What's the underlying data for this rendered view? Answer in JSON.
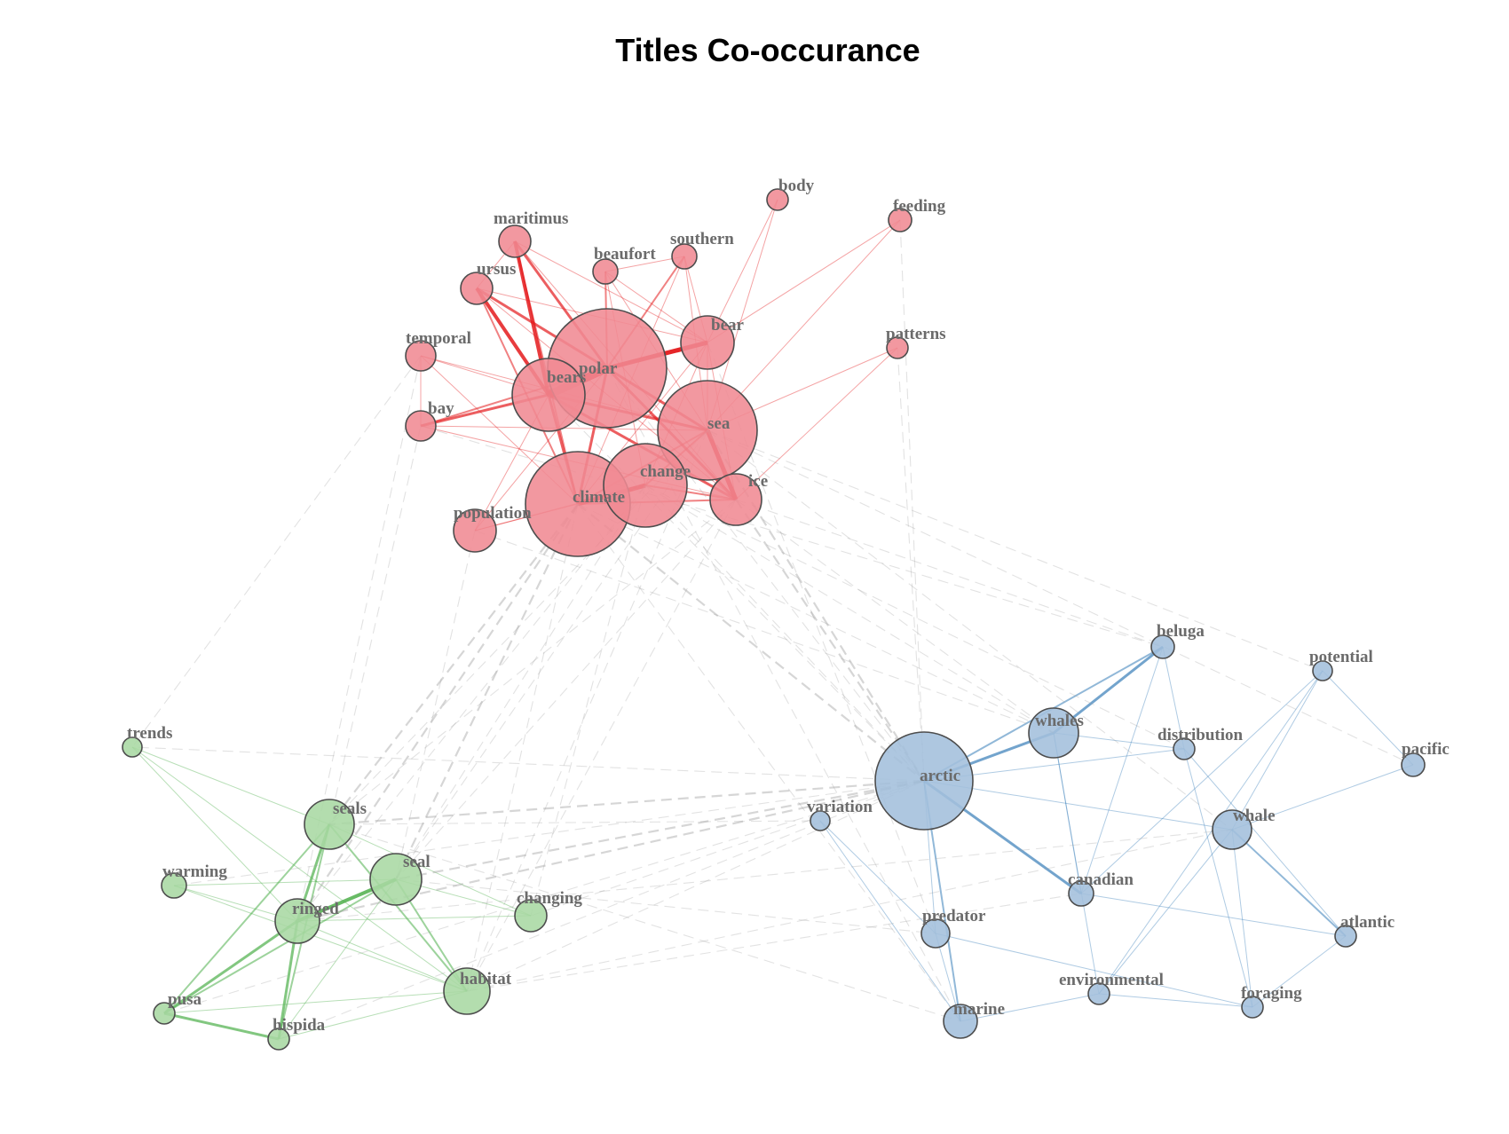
{
  "title": "Titles Co-occurance",
  "colors": {
    "cluster_1": "#e41a1c",
    "cluster_2": "#377eb8",
    "cluster_3": "#4daf4a",
    "between_clusters": "#9e9e9e"
  },
  "clusters": [
    {
      "id": 1,
      "color": "#e41a1c",
      "fill": "#f08a93"
    },
    {
      "id": 2,
      "color": "#377eb8",
      "fill": "#a3bfdc"
    },
    {
      "id": 3,
      "color": "#4daf4a",
      "fill": "#a8d8a3"
    }
  ],
  "nodes": [
    {
      "id": "polar",
      "label": "polar",
      "cluster": 1
    },
    {
      "id": "bears",
      "label": "bears",
      "cluster": 1
    },
    {
      "id": "climate",
      "label": "climate",
      "cluster": 1
    },
    {
      "id": "sea",
      "label": "sea",
      "cluster": 1
    },
    {
      "id": "change",
      "label": "change",
      "cluster": 1
    },
    {
      "id": "bear",
      "label": "bear",
      "cluster": 1
    },
    {
      "id": "ice",
      "label": "ice",
      "cluster": 1
    },
    {
      "id": "population",
      "label": "population",
      "cluster": 1
    },
    {
      "id": "maritimus",
      "label": "maritimus",
      "cluster": 1
    },
    {
      "id": "ursus",
      "label": "ursus",
      "cluster": 1
    },
    {
      "id": "southern",
      "label": "southern",
      "cluster": 1
    },
    {
      "id": "beaufort",
      "label": "beaufort",
      "cluster": 1
    },
    {
      "id": "temporal",
      "label": "temporal",
      "cluster": 1
    },
    {
      "id": "bay",
      "label": "bay",
      "cluster": 1
    },
    {
      "id": "body",
      "label": "body",
      "cluster": 1
    },
    {
      "id": "feeding",
      "label": "feeding",
      "cluster": 1
    },
    {
      "id": "patterns",
      "label": "patterns",
      "cluster": 1
    },
    {
      "id": "arctic",
      "label": "arctic",
      "cluster": 2
    },
    {
      "id": "whales",
      "label": "whales",
      "cluster": 2
    },
    {
      "id": "whale",
      "label": "whale",
      "cluster": 2
    },
    {
      "id": "marine",
      "label": "marine",
      "cluster": 2
    },
    {
      "id": "predator",
      "label": "predator",
      "cluster": 2
    },
    {
      "id": "canadian",
      "label": "canadian",
      "cluster": 2
    },
    {
      "id": "beluga",
      "label": "beluga",
      "cluster": 2
    },
    {
      "id": "distribution",
      "label": "distribution",
      "cluster": 2
    },
    {
      "id": "potential",
      "label": "potential",
      "cluster": 2
    },
    {
      "id": "pacific",
      "label": "pacific",
      "cluster": 2
    },
    {
      "id": "atlantic",
      "label": "atlantic",
      "cluster": 2
    },
    {
      "id": "environmental",
      "label": "environmental",
      "cluster": 2
    },
    {
      "id": "foraging",
      "label": "foraging",
      "cluster": 2
    },
    {
      "id": "variation",
      "label": "variation",
      "cluster": 2
    },
    {
      "id": "seals",
      "label": "seals",
      "cluster": 3
    },
    {
      "id": "seal",
      "label": "seal",
      "cluster": 3
    },
    {
      "id": "ringed",
      "label": "ringed",
      "cluster": 3
    },
    {
      "id": "habitat",
      "label": "habitat",
      "cluster": 3
    },
    {
      "id": "changing",
      "label": "changing",
      "cluster": 3
    },
    {
      "id": "warming",
      "label": "warming",
      "cluster": 3
    },
    {
      "id": "pusa",
      "label": "pusa",
      "cluster": 3
    },
    {
      "id": "hispida",
      "label": "hispida",
      "cluster": 3
    },
    {
      "id": "trends",
      "label": "trends",
      "cluster": 3
    }
  ],
  "edges": [
    {
      "source": "polar",
      "target": "bears",
      "weight": 9
    },
    {
      "source": "bears",
      "target": "maritimus",
      "weight": 4
    },
    {
      "source": "bears",
      "target": "ursus",
      "weight": 4
    },
    {
      "source": "polar",
      "target": "maritimus",
      "weight": 3
    },
    {
      "source": "polar",
      "target": "ursus",
      "weight": 3
    },
    {
      "source": "polar",
      "target": "bear",
      "weight": 5
    },
    {
      "source": "bears",
      "target": "climate",
      "weight": 3
    },
    {
      "source": "polar",
      "target": "climate",
      "weight": 3
    },
    {
      "source": "climate",
      "target": "change",
      "weight": 5
    },
    {
      "source": "sea",
      "target": "ice",
      "weight": 5
    },
    {
      "source": "polar",
      "target": "sea",
      "weight": 3
    },
    {
      "source": "polar",
      "target": "ice",
      "weight": 3
    },
    {
      "source": "bears",
      "target": "sea",
      "weight": 3
    },
    {
      "source": "bears",
      "target": "ice",
      "weight": 3
    },
    {
      "source": "bears",
      "target": "bay",
      "weight": 3
    },
    {
      "source": "polar",
      "target": "bay",
      "weight": 2
    },
    {
      "source": "bears",
      "target": "temporal",
      "weight": 1
    },
    {
      "source": "polar",
      "target": "population",
      "weight": 1
    },
    {
      "source": "bears",
      "target": "population",
      "weight": 1
    },
    {
      "source": "bear",
      "target": "maritimus",
      "weight": 1
    },
    {
      "source": "bear",
      "target": "ursus",
      "weight": 1
    },
    {
      "source": "bear",
      "target": "southern",
      "weight": 1
    },
    {
      "source": "bear",
      "target": "beaufort",
      "weight": 1
    },
    {
      "source": "polar",
      "target": "beaufort",
      "weight": 2
    },
    {
      "source": "polar",
      "target": "southern",
      "weight": 2
    },
    {
      "source": "sea",
      "target": "beaufort",
      "weight": 1
    },
    {
      "source": "sea",
      "target": "southern",
      "weight": 1
    },
    {
      "source": "sea",
      "target": "body",
      "weight": 1
    },
    {
      "source": "bear",
      "target": "body",
      "weight": 1
    },
    {
      "source": "sea",
      "target": "feeding",
      "weight": 1
    },
    {
      "source": "bear",
      "target": "feeding",
      "weight": 1
    },
    {
      "source": "ice",
      "target": "patterns",
      "weight": 1
    },
    {
      "source": "sea",
      "target": "patterns",
      "weight": 1
    },
    {
      "source": "temporal",
      "target": "climate",
      "weight": 1
    },
    {
      "source": "temporal",
      "target": "sea",
      "weight": 1
    },
    {
      "source": "bay",
      "target": "sea",
      "weight": 1
    },
    {
      "source": "bay",
      "target": "ice",
      "weight": 1
    },
    {
      "source": "change",
      "target": "ice",
      "weight": 2
    },
    {
      "source": "climate",
      "target": "ice",
      "weight": 2
    },
    {
      "source": "climate",
      "target": "sea",
      "weight": 2
    },
    {
      "source": "change",
      "target": "sea",
      "weight": 2
    },
    {
      "source": "population",
      "target": "climate",
      "weight": 1
    },
    {
      "source": "population",
      "target": "change",
      "weight": 1
    },
    {
      "source": "maritimus",
      "target": "ursus",
      "weight": 1
    },
    {
      "source": "maritimus",
      "target": "climate",
      "weight": 2
    },
    {
      "source": "ursus",
      "target": "climate",
      "weight": 2
    },
    {
      "source": "maritimus",
      "target": "ice",
      "weight": 1
    },
    {
      "source": "ursus",
      "target": "ice",
      "weight": 1
    },
    {
      "source": "bear",
      "target": "climate",
      "weight": 1
    },
    {
      "source": "bear",
      "target": "change",
      "weight": 1
    },
    {
      "source": "bear",
      "target": "ice",
      "weight": 1
    },
    {
      "source": "bear",
      "target": "sea",
      "weight": 1
    },
    {
      "source": "temporal",
      "target": "bay",
      "weight": 1
    },
    {
      "source": "southern",
      "target": "beaufort",
      "weight": 1
    },
    {
      "source": "beaufort",
      "target": "change",
      "weight": 1
    },
    {
      "source": "southern",
      "target": "climate",
      "weight": 1
    },
    {
      "source": "arctic",
      "target": "whales",
      "weight": 3
    },
    {
      "source": "arctic",
      "target": "beluga",
      "weight": 2
    },
    {
      "source": "whales",
      "target": "beluga",
      "weight": 3
    },
    {
      "source": "arctic",
      "target": "canadian",
      "weight": 3
    },
    {
      "source": "arctic",
      "target": "marine",
      "weight": 2
    },
    {
      "source": "arctic",
      "target": "predator",
      "weight": 1
    },
    {
      "source": "arctic",
      "target": "whale",
      "weight": 1
    },
    {
      "source": "arctic",
      "target": "distribution",
      "weight": 1
    },
    {
      "source": "whale",
      "target": "atlantic",
      "weight": 2
    },
    {
      "source": "whale",
      "target": "environmental",
      "weight": 1
    },
    {
      "source": "whale",
      "target": "foraging",
      "weight": 1
    },
    {
      "source": "whale",
      "target": "pacific",
      "weight": 1
    },
    {
      "source": "beluga",
      "target": "canadian",
      "weight": 1
    },
    {
      "source": "beluga",
      "target": "distribution",
      "weight": 1
    },
    {
      "source": "whales",
      "target": "distribution",
      "weight": 1
    },
    {
      "source": "whales",
      "target": "canadian",
      "weight": 1
    },
    {
      "source": "whales",
      "target": "environmental",
      "weight": 1
    },
    {
      "source": "distribution",
      "target": "foraging",
      "weight": 1
    },
    {
      "source": "distribution",
      "target": "atlantic",
      "weight": 1
    },
    {
      "source": "potential",
      "target": "canadian",
      "weight": 1
    },
    {
      "source": "potential",
      "target": "environmental",
      "weight": 1
    },
    {
      "source": "potential",
      "target": "pacific",
      "weight": 1
    },
    {
      "source": "canadian",
      "target": "atlantic",
      "weight": 1
    },
    {
      "source": "predator",
      "target": "marine",
      "weight": 1
    },
    {
      "source": "predator",
      "target": "foraging",
      "weight": 1
    },
    {
      "source": "marine",
      "target": "environmental",
      "weight": 1
    },
    {
      "source": "environmental",
      "target": "foraging",
      "weight": 1
    },
    {
      "source": "foraging",
      "target": "atlantic",
      "weight": 1
    },
    {
      "source": "variation",
      "target": "predator",
      "weight": 1
    },
    {
      "source": "variation",
      "target": "marine",
      "weight": 1
    },
    {
      "source": "whale",
      "target": "potential",
      "weight": 1
    },
    {
      "source": "ringed",
      "target": "seal",
      "weight": 4
    },
    {
      "source": "ringed",
      "target": "seals",
      "weight": 3
    },
    {
      "source": "ringed",
      "target": "pusa",
      "weight": 3
    },
    {
      "source": "ringed",
      "target": "hispida",
      "weight": 3
    },
    {
      "source": "pusa",
      "target": "hispida",
      "weight": 3
    },
    {
      "source": "seals",
      "target": "hispida",
      "weight": 2
    },
    {
      "source": "seals",
      "target": "pusa",
      "weight": 2
    },
    {
      "source": "seal",
      "target": "pusa",
      "weight": 2
    },
    {
      "source": "seal",
      "target": "hispida",
      "weight": 1
    },
    {
      "source": "seal",
      "target": "habitat",
      "weight": 2
    },
    {
      "source": "seals",
      "target": "habitat",
      "weight": 2
    },
    {
      "source": "ringed",
      "target": "habitat",
      "weight": 1
    },
    {
      "source": "seal",
      "target": "changing",
      "weight": 1
    },
    {
      "source": "seals",
      "target": "changing",
      "weight": 1
    },
    {
      "source": "warming",
      "target": "seal",
      "weight": 1
    },
    {
      "source": "warming",
      "target": "ringed",
      "weight": 1
    },
    {
      "source": "warming",
      "target": "habitat",
      "weight": 1
    },
    {
      "source": "trends",
      "target": "seals",
      "weight": 1
    },
    {
      "source": "trends",
      "target": "ringed",
      "weight": 1
    },
    {
      "source": "trends",
      "target": "habitat",
      "weight": 1
    },
    {
      "source": "habitat",
      "target": "pusa",
      "weight": 1
    },
    {
      "source": "habitat",
      "target": "hispida",
      "weight": 1
    },
    {
      "source": "changing",
      "target": "ringed",
      "weight": 1
    },
    {
      "source": "climate",
      "target": "seal",
      "weight": 2
    },
    {
      "source": "climate",
      "target": "seals",
      "weight": 2
    },
    {
      "source": "climate",
      "target": "ringed",
      "weight": 2
    },
    {
      "source": "climate",
      "target": "habitat",
      "weight": 1
    },
    {
      "source": "change",
      "target": "seal",
      "weight": 1
    },
    {
      "source": "change",
      "target": "ringed",
      "weight": 1
    },
    {
      "source": "change",
      "target": "arctic",
      "weight": 1
    },
    {
      "source": "climate",
      "target": "arctic",
      "weight": 2
    },
    {
      "source": "sea",
      "target": "arctic",
      "weight": 2
    },
    {
      "source": "ice",
      "target": "arctic",
      "weight": 2
    },
    {
      "source": "polar",
      "target": "arctic",
      "weight": 1
    },
    {
      "source": "bears",
      "target": "arctic",
      "weight": 1
    },
    {
      "source": "arctic",
      "target": "seals",
      "weight": 2
    },
    {
      "source": "arctic",
      "target": "seal",
      "weight": 2
    },
    {
      "source": "arctic",
      "target": "ringed",
      "weight": 2
    },
    {
      "source": "arctic",
      "target": "habitat",
      "weight": 1
    },
    {
      "source": "arctic",
      "target": "trends",
      "weight": 1
    },
    {
      "source": "temporal",
      "target": "trends",
      "weight": 1
    },
    {
      "source": "sea",
      "target": "seal",
      "weight": 1
    },
    {
      "source": "ice",
      "target": "seal",
      "weight": 1
    },
    {
      "source": "ice",
      "target": "seals",
      "weight": 1
    },
    {
      "source": "sea",
      "target": "seals",
      "weight": 1
    },
    {
      "source": "ice",
      "target": "habitat",
      "weight": 1
    },
    {
      "source": "sea",
      "target": "habitat",
      "weight": 1
    },
    {
      "source": "feeding",
      "target": "arctic",
      "weight": 1
    },
    {
      "source": "patterns",
      "target": "arctic",
      "weight": 1
    },
    {
      "source": "population",
      "target": "seal",
      "weight": 1
    },
    {
      "source": "change",
      "target": "changing",
      "weight": 1
    },
    {
      "source": "sea",
      "target": "whale",
      "weight": 1
    },
    {
      "source": "ice",
      "target": "whales",
      "weight": 1
    },
    {
      "source": "ice",
      "target": "beluga",
      "weight": 1
    },
    {
      "source": "climate",
      "target": "whales",
      "weight": 1
    },
    {
      "source": "change",
      "target": "whales",
      "weight": 1
    },
    {
      "source": "polar",
      "target": "marine",
      "weight": 1
    },
    {
      "source": "bear",
      "target": "predator",
      "weight": 1
    },
    {
      "source": "climate",
      "target": "marine",
      "weight": 1
    },
    {
      "source": "warming",
      "target": "arctic",
      "weight": 1
    },
    {
      "source": "changing",
      "target": "arctic",
      "weight": 1
    },
    {
      "source": "seals",
      "target": "marine",
      "weight": 1
    },
    {
      "source": "seal",
      "target": "predator",
      "weight": 1
    },
    {
      "source": "habitat",
      "target": "canadian",
      "weight": 1
    },
    {
      "source": "habitat",
      "target": "whale",
      "weight": 1
    },
    {
      "source": "seals",
      "target": "variation",
      "weight": 1
    },
    {
      "source": "ringed",
      "target": "whale",
      "weight": 1
    },
    {
      "source": "sea",
      "target": "potential",
      "weight": 1
    },
    {
      "source": "sea",
      "target": "pacific",
      "weight": 1
    },
    {
      "source": "bay",
      "target": "beluga",
      "weight": 1
    },
    {
      "source": "change",
      "target": "distribution",
      "weight": 1
    },
    {
      "source": "population",
      "target": "whales",
      "weight": 1
    },
    {
      "source": "temporal",
      "target": "ringed",
      "weight": 1
    },
    {
      "source": "bay",
      "target": "seals",
      "weight": 1
    },
    {
      "source": "pusa",
      "target": "arctic",
      "weight": 1
    },
    {
      "source": "hispida",
      "target": "arctic",
      "weight": 1
    }
  ]
}
